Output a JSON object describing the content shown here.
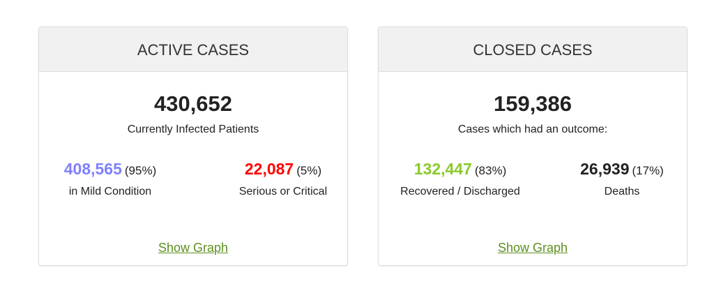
{
  "cards": [
    {
      "title": "ACTIVE CASES",
      "total": "430,652",
      "description": "Currently Infected Patients",
      "breakdown": [
        {
          "value": "408,565",
          "percent": "(95%)",
          "label": "in Mild Condition",
          "color": "#8080ff"
        },
        {
          "value": "22,087",
          "percent": "(5%)",
          "label": "Serious or Critical",
          "color": "#ff0000"
        }
      ],
      "link": "Show Graph"
    },
    {
      "title": "CLOSED CASES",
      "total": "159,386",
      "description": "Cases which had an outcome:",
      "breakdown": [
        {
          "value": "132,447",
          "percent": "(83%)",
          "label": "Recovered / Discharged",
          "color": "#8aca2b"
        },
        {
          "value": "26,939",
          "percent": "(17%)",
          "label": "Deaths",
          "color": "#222222"
        }
      ],
      "link": "Show Graph"
    }
  ]
}
